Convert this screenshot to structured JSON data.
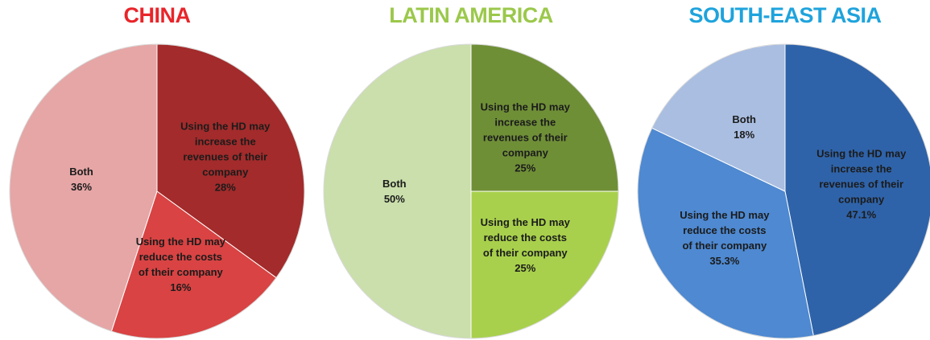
{
  "chart_data": [
    {
      "type": "pie",
      "title": "CHINA",
      "title_color": "#e8252a",
      "categories": [
        "Using the HD may increase the revenues of their company",
        "Using the HD may reduce the costs of their company",
        "Both"
      ],
      "values": [
        28,
        16,
        36
      ],
      "value_labels": [
        "28%",
        "16%",
        "36%"
      ],
      "colors": [
        "#a32b2b",
        "#d94343",
        "#e6a6a6"
      ]
    },
    {
      "type": "pie",
      "title": "LATIN AMERICA",
      "title_color": "#9bc84b",
      "categories": [
        "Using the HD may increase the revenues of their company",
        "Using the HD may reduce the costs of their company",
        "Both"
      ],
      "values": [
        25,
        25,
        50
      ],
      "value_labels": [
        "25%",
        "25%",
        "50%"
      ],
      "colors": [
        "#6f8f37",
        "#a8d04c",
        "#cadfab"
      ]
    },
    {
      "type": "pie",
      "title": "SOUTH-EAST ASIA",
      "title_color": "#1fa3dc",
      "categories": [
        "Using the HD may increase the revenues of their company",
        "Using the HD may reduce the costs of their company",
        "Both"
      ],
      "values": [
        47.1,
        35.3,
        18
      ],
      "value_labels": [
        "47.1%",
        "35.3%",
        "18%"
      ],
      "colors": [
        "#2f63a9",
        "#4e89d1",
        "#a9bee1"
      ]
    }
  ]
}
